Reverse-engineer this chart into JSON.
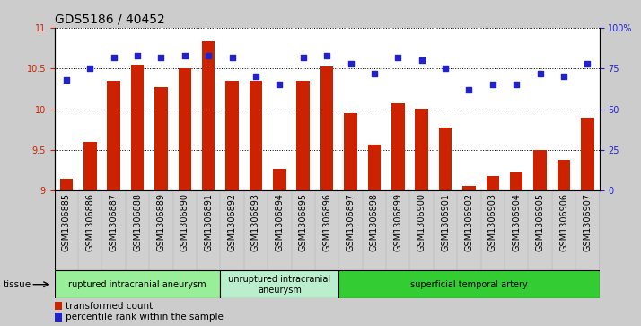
{
  "title": "GDS5186 / 40452",
  "samples": [
    "GSM1306885",
    "GSM1306886",
    "GSM1306887",
    "GSM1306888",
    "GSM1306889",
    "GSM1306890",
    "GSM1306891",
    "GSM1306892",
    "GSM1306893",
    "GSM1306894",
    "GSM1306895",
    "GSM1306896",
    "GSM1306897",
    "GSM1306898",
    "GSM1306899",
    "GSM1306900",
    "GSM1306901",
    "GSM1306902",
    "GSM1306903",
    "GSM1306904",
    "GSM1306905",
    "GSM1306906",
    "GSM1306907"
  ],
  "bar_values": [
    9.15,
    9.6,
    10.35,
    10.55,
    10.27,
    10.5,
    10.83,
    10.35,
    10.35,
    9.27,
    10.35,
    10.53,
    9.95,
    9.57,
    10.07,
    10.01,
    9.77,
    9.06,
    9.18,
    9.22,
    9.5,
    9.38,
    9.9
  ],
  "dot_values": [
    68,
    75,
    82,
    83,
    82,
    83,
    83,
    82,
    70,
    65,
    82,
    83,
    78,
    72,
    82,
    80,
    75,
    62,
    65,
    65,
    72,
    70,
    78
  ],
  "ylim_left": [
    9.0,
    11.0
  ],
  "ylim_right": [
    0,
    100
  ],
  "yticks_left": [
    9.0,
    9.5,
    10.0,
    10.5,
    11.0
  ],
  "ytick_labels_left": [
    "9",
    "9.5",
    "10",
    "10.5",
    "11"
  ],
  "yticks_right": [
    0,
    25,
    50,
    75,
    100
  ],
  "ytick_labels_right": [
    "0",
    "25",
    "50",
    "75",
    "100%"
  ],
  "bar_color": "#cc2200",
  "dot_color": "#2222cc",
  "grid_color": "#000000",
  "bg_color": "#cccccc",
  "plot_bg_color": "#ffffff",
  "xtick_bg_color": "#d0d0d0",
  "groups": [
    {
      "label": "ruptured intracranial aneurysm",
      "start": 0,
      "end": 7,
      "color": "#99ee99"
    },
    {
      "label": "unruptured intracranial\naneurysm",
      "start": 7,
      "end": 12,
      "color": "#bbeecc"
    },
    {
      "label": "superficial temporal artery",
      "start": 12,
      "end": 23,
      "color": "#33cc33"
    }
  ],
  "legend_bar_label": "transformed count",
  "legend_dot_label": "percentile rank within the sample",
  "tissue_label": "tissue",
  "title_fontsize": 10,
  "tick_fontsize": 7,
  "base_value": 9.0
}
